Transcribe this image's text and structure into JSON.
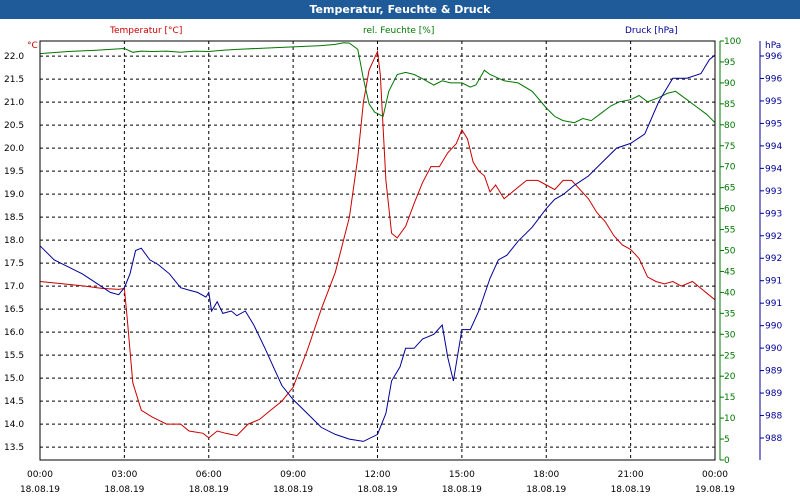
{
  "window": {
    "title": "Temperatur, Feuchte & Druck"
  },
  "chart_data": {
    "type": "line",
    "title": "Temperatur, Feuchte & Druck",
    "colors": {
      "temperature": "#cc0000",
      "humidity": "#007700",
      "pressure": "#000099",
      "grid": "#000000"
    },
    "x_ticks": [
      {
        "time": "00:00",
        "date": "18.08.19"
      },
      {
        "time": "03:00",
        "date": "18.08.19"
      },
      {
        "time": "06:00",
        "date": "18.08.19"
      },
      {
        "time": "09:00",
        "date": "18.08.19"
      },
      {
        "time": "12:00",
        "date": "18.08.19"
      },
      {
        "time": "15:00",
        "date": "18.08.19"
      },
      {
        "time": "18:00",
        "date": "18.08.19"
      },
      {
        "time": "21:00",
        "date": "18.08.19"
      },
      {
        "time": "00:00",
        "date": "19.08.19"
      }
    ],
    "xlim_hours": [
      0,
      24
    ],
    "axes": {
      "temperature": {
        "label": "Temperatur [°C]",
        "unit": "°C",
        "range": [
          13.22,
          22.33
        ],
        "ticks": [
          "22.0",
          "21.5",
          "21.0",
          "20.5",
          "20.0",
          "19.5",
          "19.0",
          "18.5",
          "18.0",
          "17.5",
          "17.0",
          "16.5",
          "16.0",
          "15.5",
          "15.0",
          "14.5",
          "14.0",
          "13.5"
        ]
      },
      "humidity": {
        "label": "rel. Feuchte [%]",
        "unit": "%",
        "range": [
          0,
          100
        ],
        "ticks": [
          "100",
          "95",
          "90",
          "85",
          "80",
          "75",
          "70",
          "65",
          "60",
          "55",
          "50",
          "45",
          "40",
          "35",
          "30",
          "25",
          "20",
          "15",
          "10",
          "5",
          "0"
        ]
      },
      "pressure": {
        "label": "Druck [hPa]",
        "unit": "hPa",
        "range": [
          987.6,
          996.6
        ],
        "ticks": [
          "996",
          "996",
          "995",
          "995",
          "994",
          "994",
          "993",
          "993",
          "992",
          "992",
          "991",
          "991",
          "990",
          "990",
          "989",
          "989",
          "988",
          "988"
        ]
      }
    },
    "series": [
      {
        "name": "Temperatur",
        "axis": "temperature",
        "color": "#cc0000",
        "points": [
          [
            0,
            17.1
          ],
          [
            0.8,
            17.05
          ],
          [
            1.6,
            17.0
          ],
          [
            2.2,
            16.95
          ],
          [
            2.8,
            16.93
          ],
          [
            3.0,
            16.95
          ],
          [
            3.1,
            16.3
          ],
          [
            3.3,
            14.9
          ],
          [
            3.6,
            14.3
          ],
          [
            4.0,
            14.15
          ],
          [
            4.5,
            14.0
          ],
          [
            5.0,
            14.0
          ],
          [
            5.3,
            13.85
          ],
          [
            5.8,
            13.8
          ],
          [
            6.0,
            13.7
          ],
          [
            6.3,
            13.85
          ],
          [
            6.6,
            13.8
          ],
          [
            7.0,
            13.75
          ],
          [
            7.4,
            14.0
          ],
          [
            7.8,
            14.1
          ],
          [
            8.2,
            14.3
          ],
          [
            8.6,
            14.5
          ],
          [
            9.0,
            14.8
          ],
          [
            9.5,
            15.6
          ],
          [
            10.0,
            16.5
          ],
          [
            10.5,
            17.3
          ],
          [
            11.0,
            18.5
          ],
          [
            11.3,
            19.8
          ],
          [
            11.5,
            21.0
          ],
          [
            11.7,
            21.7
          ],
          [
            12.0,
            22.1
          ],
          [
            12.1,
            21.6
          ],
          [
            12.3,
            19.3
          ],
          [
            12.5,
            18.15
          ],
          [
            12.7,
            18.05
          ],
          [
            13.0,
            18.3
          ],
          [
            13.3,
            18.8
          ],
          [
            13.6,
            19.25
          ],
          [
            13.9,
            19.6
          ],
          [
            14.2,
            19.6
          ],
          [
            14.5,
            19.9
          ],
          [
            14.8,
            20.1
          ],
          [
            15.0,
            20.4
          ],
          [
            15.2,
            20.2
          ],
          [
            15.4,
            19.7
          ],
          [
            15.6,
            19.5
          ],
          [
            15.8,
            19.4
          ],
          [
            16.0,
            19.05
          ],
          [
            16.2,
            19.2
          ],
          [
            16.5,
            18.9
          ],
          [
            16.8,
            19.05
          ],
          [
            17.0,
            19.15
          ],
          [
            17.3,
            19.3
          ],
          [
            17.7,
            19.3
          ],
          [
            18.0,
            19.2
          ],
          [
            18.3,
            19.1
          ],
          [
            18.6,
            19.3
          ],
          [
            18.9,
            19.3
          ],
          [
            19.2,
            19.1
          ],
          [
            19.5,
            18.9
          ],
          [
            19.8,
            18.6
          ],
          [
            20.1,
            18.4
          ],
          [
            20.4,
            18.1
          ],
          [
            20.7,
            17.9
          ],
          [
            21.0,
            17.8
          ],
          [
            21.3,
            17.6
          ],
          [
            21.6,
            17.2
          ],
          [
            21.9,
            17.1
          ],
          [
            22.2,
            17.05
          ],
          [
            22.5,
            17.1
          ],
          [
            22.8,
            17.0
          ],
          [
            23.2,
            17.1
          ],
          [
            23.5,
            16.95
          ],
          [
            23.8,
            16.8
          ],
          [
            24.0,
            16.7
          ]
        ]
      },
      {
        "name": "rel. Feuchte",
        "axis": "humidity",
        "color": "#007700",
        "points": [
          [
            0,
            97
          ],
          [
            1.0,
            97.5
          ],
          [
            2.0,
            97.8
          ],
          [
            2.5,
            98
          ],
          [
            3.0,
            98.2
          ],
          [
            3.3,
            97.3
          ],
          [
            3.6,
            97.6
          ],
          [
            4.0,
            97.5
          ],
          [
            4.5,
            97.6
          ],
          [
            5.0,
            97.3
          ],
          [
            5.5,
            97.6
          ],
          [
            6.0,
            97.5
          ],
          [
            6.5,
            97.8
          ],
          [
            7.0,
            98
          ],
          [
            8.0,
            98.3
          ],
          [
            9.0,
            98.6
          ],
          [
            10.0,
            98.9
          ],
          [
            10.5,
            99.2
          ],
          [
            10.8,
            99.6
          ],
          [
            11.0,
            99.5
          ],
          [
            11.3,
            98
          ],
          [
            11.5,
            91
          ],
          [
            11.7,
            85
          ],
          [
            11.9,
            83
          ],
          [
            12.2,
            82
          ],
          [
            12.4,
            88
          ],
          [
            12.7,
            92
          ],
          [
            13.0,
            92.5
          ],
          [
            13.3,
            92
          ],
          [
            13.6,
            91
          ],
          [
            14.0,
            89.5
          ],
          [
            14.3,
            90.5
          ],
          [
            14.6,
            90
          ],
          [
            15.0,
            90
          ],
          [
            15.3,
            89
          ],
          [
            15.5,
            89.5
          ],
          [
            15.8,
            93
          ],
          [
            16.0,
            92
          ],
          [
            16.5,
            90.5
          ],
          [
            17.0,
            90
          ],
          [
            17.5,
            88
          ],
          [
            18.0,
            84
          ],
          [
            18.3,
            82
          ],
          [
            18.6,
            81
          ],
          [
            19.0,
            80.5
          ],
          [
            19.3,
            81.5
          ],
          [
            19.6,
            81
          ],
          [
            20.0,
            83
          ],
          [
            20.3,
            84.5
          ],
          [
            20.6,
            85.5
          ],
          [
            21.0,
            86
          ],
          [
            21.3,
            87
          ],
          [
            21.6,
            85.5
          ],
          [
            22.0,
            86.5
          ],
          [
            22.3,
            87.5
          ],
          [
            22.6,
            88
          ],
          [
            23.0,
            86
          ],
          [
            23.4,
            84
          ],
          [
            23.7,
            82.5
          ],
          [
            24.0,
            80.5
          ]
        ]
      },
      {
        "name": "Druck",
        "axis": "pressure",
        "color": "#000099",
        "points": [
          [
            0,
            992.2
          ],
          [
            0.5,
            991.9
          ],
          [
            1.0,
            991.75
          ],
          [
            1.5,
            991.6
          ],
          [
            2.0,
            991.4
          ],
          [
            2.5,
            991.2
          ],
          [
            2.8,
            991.15
          ],
          [
            3.0,
            991.3
          ],
          [
            3.2,
            991.6
          ],
          [
            3.4,
            992.1
          ],
          [
            3.6,
            992.15
          ],
          [
            3.9,
            991.9
          ],
          [
            4.2,
            991.8
          ],
          [
            4.6,
            991.6
          ],
          [
            5.0,
            991.3
          ],
          [
            5.3,
            991.25
          ],
          [
            5.6,
            991.2
          ],
          [
            5.9,
            991.1
          ],
          [
            6.0,
            991.2
          ],
          [
            6.1,
            990.8
          ],
          [
            6.3,
            991.0
          ],
          [
            6.5,
            990.75
          ],
          [
            6.8,
            990.8
          ],
          [
            7.0,
            990.7
          ],
          [
            7.3,
            990.8
          ],
          [
            7.6,
            990.5
          ],
          [
            8.0,
            990.0
          ],
          [
            8.3,
            989.6
          ],
          [
            8.6,
            989.2
          ],
          [
            9.0,
            988.9
          ],
          [
            9.5,
            988.6
          ],
          [
            10.0,
            988.3
          ],
          [
            10.5,
            988.15
          ],
          [
            11.0,
            988.05
          ],
          [
            11.5,
            988.0
          ],
          [
            12.0,
            988.15
          ],
          [
            12.3,
            988.6
          ],
          [
            12.5,
            989.3
          ],
          [
            12.8,
            989.6
          ],
          [
            13.0,
            990.0
          ],
          [
            13.3,
            990.0
          ],
          [
            13.6,
            990.2
          ],
          [
            14.0,
            990.3
          ],
          [
            14.3,
            990.5
          ],
          [
            14.5,
            989.8
          ],
          [
            14.7,
            989.3
          ],
          [
            15.0,
            990.4
          ],
          [
            15.3,
            990.4
          ],
          [
            15.6,
            990.8
          ],
          [
            16.0,
            991.5
          ],
          [
            16.3,
            991.9
          ],
          [
            16.6,
            992.0
          ],
          [
            17.0,
            992.3
          ],
          [
            17.5,
            992.6
          ],
          [
            18.0,
            993.0
          ],
          [
            18.3,
            993.2
          ],
          [
            18.6,
            993.3
          ],
          [
            19.0,
            993.5
          ],
          [
            19.5,
            993.7
          ],
          [
            20.0,
            994.0
          ],
          [
            20.5,
            994.3
          ],
          [
            21.0,
            994.4
          ],
          [
            21.5,
            994.6
          ],
          [
            22.0,
            995.3
          ],
          [
            22.5,
            995.8
          ],
          [
            23.0,
            995.8
          ],
          [
            23.5,
            995.9
          ],
          [
            23.8,
            996.2
          ],
          [
            24.0,
            996.3
          ]
        ]
      }
    ]
  }
}
